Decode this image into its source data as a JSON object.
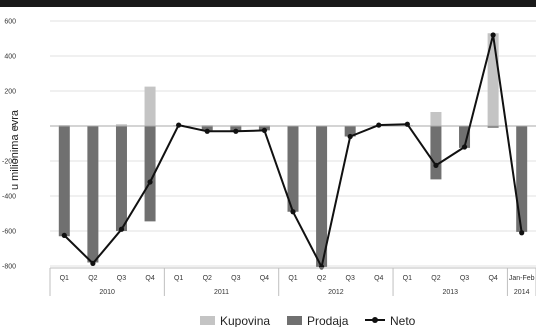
{
  "chart_data": {
    "type": "bar",
    "ylabel": "u milionima evra",
    "ylim": [
      -800,
      600
    ],
    "yticks": [
      -800,
      -600,
      -400,
      -200,
      0,
      200,
      400,
      600
    ],
    "grid": true,
    "legend_position": "bottom",
    "categories": [
      "Q1",
      "Q2",
      "Q3",
      "Q4",
      "Q1",
      "Q2",
      "Q3",
      "Q4",
      "Q1",
      "Q2",
      "Q3",
      "Q4",
      "Q1",
      "Q2",
      "Q3",
      "Q4",
      "Jan-Feb"
    ],
    "year_groups": [
      {
        "label": "2010",
        "count": 4
      },
      {
        "label": "2011",
        "count": 4
      },
      {
        "label": "2012",
        "count": 4
      },
      {
        "label": "2013",
        "count": 4
      },
      {
        "label": "2014",
        "count": 1
      }
    ],
    "series": [
      {
        "name": "Kupovina",
        "kind": "bar",
        "color": "#c4c4c4",
        "values": [
          5,
          0,
          10,
          225,
          5,
          5,
          5,
          5,
          0,
          0,
          0,
          5,
          5,
          80,
          0,
          530,
          0
        ]
      },
      {
        "name": "Prodaja",
        "kind": "bar",
        "color": "#707070",
        "values": [
          -630,
          -780,
          -600,
          -545,
          0,
          -25,
          -30,
          -25,
          -490,
          -805,
          -60,
          0,
          0,
          -305,
          -125,
          -10,
          -605
        ]
      },
      {
        "name": "Neto",
        "kind": "line",
        "color": "#111111",
        "values": [
          -625,
          -785,
          -590,
          -320,
          5,
          -30,
          -30,
          -25,
          -490,
          -805,
          -60,
          5,
          10,
          -225,
          -120,
          520,
          -610
        ]
      }
    ]
  }
}
